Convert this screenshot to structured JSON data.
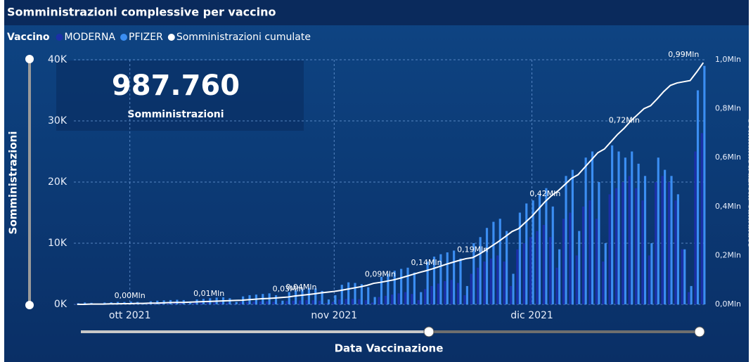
{
  "chart_data": {
    "type": "bar",
    "title": "Somministrazioni complessive per vaccino",
    "legend_title": "Vaccino",
    "ylabel": "Somministrazioni",
    "y2label": "Somministrazioni cumulate",
    "xlabel": "Data Vaccinazione",
    "card": {
      "value": "987.760",
      "label": "Somministrazioni"
    },
    "grid": true,
    "categories": [
      null,
      null,
      null,
      null,
      null,
      null,
      null,
      null,
      "ott 2021",
      null,
      null,
      null,
      null,
      null,
      null,
      null,
      null,
      null,
      null,
      null,
      null,
      null,
      null,
      null,
      null,
      null,
      null,
      null,
      null,
      null,
      null,
      null,
      null,
      null,
      null,
      null,
      null,
      null,
      null,
      "nov 2021",
      null,
      null,
      null,
      null,
      null,
      null,
      null,
      null,
      null,
      null,
      null,
      null,
      null,
      null,
      null,
      null,
      null,
      null,
      null,
      null,
      null,
      null,
      null,
      null,
      null,
      null,
      null,
      null,
      null,
      "dic 2021",
      null,
      null,
      null,
      null,
      null,
      null,
      null,
      null,
      null,
      null,
      null,
      null,
      null,
      null,
      null,
      null,
      null,
      null,
      null,
      null,
      null,
      null,
      null,
      null,
      null,
      null
    ],
    "ylim": [
      0,
      40000
    ],
    "yticks": [
      {
        "value": 0,
        "label": "0K"
      },
      {
        "value": 10000,
        "label": "10K"
      },
      {
        "value": 20000,
        "label": "20K"
      },
      {
        "value": 30000,
        "label": "30K"
      },
      {
        "value": 40000,
        "label": "40K"
      }
    ],
    "y2lim": [
      0,
      1.0
    ],
    "y2ticks": [
      {
        "value": 0,
        "label": "0,0Mln"
      },
      {
        "value": 0.2,
        "label": "0,2Mln"
      },
      {
        "value": 0.4,
        "label": "0,4Mln"
      },
      {
        "value": 0.6,
        "label": "0,6Mln"
      },
      {
        "value": 0.8,
        "label": "0,8Mln"
      },
      {
        "value": 1.0,
        "label": "1,0Mln"
      }
    ],
    "series": [
      {
        "name": "MODERNA",
        "color": "#1b2fa8",
        "values": [
          50,
          80,
          60,
          20,
          70,
          90,
          100,
          100,
          120,
          100,
          40,
          150,
          180,
          200,
          200,
          220,
          200,
          80,
          250,
          280,
          300,
          320,
          330,
          300,
          120,
          380,
          400,
          450,
          480,
          500,
          420,
          150,
          550,
          600,
          650,
          700,
          680,
          600,
          200,
          400,
          800,
          900,
          900,
          850,
          700,
          300,
          1200,
          1400,
          1600,
          1800,
          2000,
          1700,
          700,
          2500,
          3000,
          3400,
          3800,
          4000,
          3500,
          1500,
          5000,
          6000,
          7000,
          7500,
          8000,
          7000,
          3000,
          9000,
          10000,
          11000,
          12000,
          13000,
          11000,
          6000,
          14000,
          15000,
          8000,
          16000,
          17000,
          14000,
          7000,
          18000,
          19000,
          20000,
          21000,
          19000,
          17000,
          8000,
          20000,
          21000,
          20000,
          17000,
          9000,
          2000,
          25000,
          28000
        ]
      },
      {
        "name": "PFIZER",
        "color": "#3b8ef2",
        "values": [
          200,
          300,
          250,
          100,
          300,
          350,
          400,
          380,
          450,
          400,
          150,
          500,
          600,
          650,
          700,
          750,
          700,
          250,
          800,
          900,
          1000,
          1100,
          1150,
          1000,
          400,
          1300,
          1500,
          1600,
          1700,
          1800,
          1500,
          600,
          2000,
          2300,
          2500,
          2700,
          2600,
          2200,
          800,
          1500,
          3200,
          3600,
          3500,
          3300,
          2800,
          1200,
          4500,
          5000,
          5500,
          5800,
          6000,
          5200,
          2000,
          7000,
          7800,
          8200,
          8500,
          8800,
          7500,
          3000,
          10000,
          11000,
          12500,
          13500,
          14000,
          12000,
          5000,
          15000,
          16500,
          17000,
          18000,
          19000,
          16000,
          9000,
          21000,
          22000,
          12000,
          24000,
          25000,
          20000,
          10000,
          26000,
          25000,
          24000,
          25000,
          23000,
          21000,
          10000,
          24000,
          22000,
          21000,
          18000,
          9000,
          3000,
          35000,
          39000
        ]
      },
      {
        "name": "Somministrazioni cumulate",
        "type": "line",
        "axis": "y2",
        "color": "#ffffff",
        "values": [
          0,
          0,
          0.001,
          0.001,
          0.001,
          0.002,
          0.002,
          0.003,
          0.003,
          0.004,
          0.004,
          0.005,
          0.005,
          0.006,
          0.007,
          0.008,
          0.008,
          0.009,
          0.01,
          0.011,
          0.012,
          0.013,
          0.014,
          0.015,
          0.016,
          0.017,
          0.019,
          0.021,
          0.023,
          0.024,
          0.026,
          0.028,
          0.03,
          0.034,
          0.037,
          0.04,
          0.043,
          0.047,
          0.05,
          0.053,
          0.057,
          0.062,
          0.067,
          0.072,
          0.078,
          0.086,
          0.09,
          0.095,
          0.1,
          0.107,
          0.115,
          0.123,
          0.131,
          0.138,
          0.146,
          0.155,
          0.164,
          0.172,
          0.18,
          0.187,
          0.191,
          0.205,
          0.222,
          0.24,
          0.258,
          0.278,
          0.298,
          0.31,
          0.335,
          0.36,
          0.39,
          0.42,
          0.445,
          0.465,
          0.49,
          0.515,
          0.53,
          0.56,
          0.59,
          0.62,
          0.635,
          0.665,
          0.695,
          0.72,
          0.75,
          0.775,
          0.8,
          0.812,
          0.84,
          0.87,
          0.895,
          0.905,
          0.91,
          0.915,
          0.95,
          0.988
        ],
        "value_labels": [
          null,
          null,
          null,
          null,
          null,
          null,
          null,
          null,
          "0,00Mln",
          null,
          null,
          null,
          null,
          null,
          null,
          null,
          null,
          null,
          null,
          null,
          "0,01Mln",
          null,
          null,
          null,
          null,
          null,
          null,
          null,
          null,
          null,
          null,
          null,
          "0,03Mln",
          null,
          "0,04Mln",
          null,
          null,
          null,
          null,
          null,
          null,
          null,
          null,
          null,
          null,
          null,
          "0,09Mln",
          null,
          null,
          null,
          null,
          null,
          null,
          "0,14Mln",
          null,
          null,
          null,
          null,
          null,
          null,
          "0,19Mln",
          null,
          null,
          null,
          null,
          null,
          null,
          null,
          null,
          null,
          null,
          "0,42Mln",
          null,
          null,
          null,
          null,
          null,
          null,
          null,
          null,
          null,
          null,
          null,
          "0,72Mln",
          null,
          null,
          null,
          null,
          null,
          null,
          null,
          null,
          null,
          null,
          null,
          "0,99Mln"
        ]
      }
    ]
  }
}
